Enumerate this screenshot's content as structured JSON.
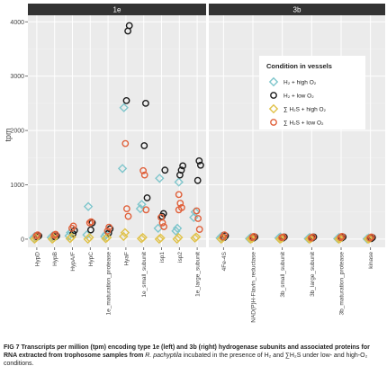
{
  "chart_data": {
    "type": "scatter",
    "ylabel": "tpm",
    "ylim": [
      -150,
      4120
    ],
    "yticks": [
      0,
      1000,
      2000,
      3000,
      4000
    ],
    "grid": true,
    "legend_placement": "right, inside 3b panel",
    "legend_title": "Condition in vessels",
    "series": [
      {
        "key": "h2_high",
        "name": "H₂ + high O₂",
        "marker": "diamond",
        "color": "#7fc6cc"
      },
      {
        "key": "h2_low",
        "name": "H₂ + low O₂",
        "marker": "circle",
        "color": "#1a1a1a"
      },
      {
        "key": "h2s_high",
        "name": "∑ H₂S + high O₂",
        "marker": "diamond",
        "color": "#e0c24a"
      },
      {
        "key": "h2s_low",
        "name": "∑ H₂S + low O₂",
        "marker": "circle",
        "color": "#e0603a"
      }
    ],
    "panels": [
      {
        "name": "1e",
        "categories": [
          "HypD",
          "HypB",
          "HypA/F",
          "HypC",
          "1e_maturation_protease",
          "HyaF",
          "1e_small_subunit",
          "isp1",
          "isp2",
          "1e_large_subunit"
        ],
        "values": {
          "h2_high": [
            [
              20,
              50
            ],
            [
              30,
              60
            ],
            [
              60,
              120
            ],
            [
              80,
              600
            ],
            [
              50,
              90
            ],
            [
              1300,
              2420
            ],
            [
              560,
              640
            ],
            [
              200,
              1120
            ],
            [
              150,
              200,
              1050
            ],
            [
              400,
              500
            ]
          ],
          "h2_low": [
            [
              40,
              60
            ],
            [
              40,
              60
            ],
            [
              100,
              160
            ],
            [
              170,
              300
            ],
            [
              110,
              190
            ],
            [
              2550,
              3830,
              3930
            ],
            [
              1720,
              2500,
              760
            ],
            [
              420,
              470,
              1270
            ],
            [
              1180,
              1270,
              1350
            ],
            [
              1080,
              1440,
              1360
            ]
          ],
          "h2s_high": [
            [
              0,
              20
            ],
            [
              0,
              20
            ],
            [
              10,
              40
            ],
            [
              0,
              30
            ],
            [
              10,
              30
            ],
            [
              50,
              120
            ],
            [
              10,
              30
            ],
            [
              0,
              20
            ],
            [
              0,
              30
            ],
            [
              20,
              40
            ]
          ],
          "h2s_low": [
            [
              60,
              80
            ],
            [
              70,
              90
            ],
            [
              200,
              240
            ],
            [
              300,
              320
            ],
            [
              150,
              220
            ],
            [
              1760,
              560,
              420
            ],
            [
              1260,
              1180,
              540
            ],
            [
              400,
              300,
              230
            ],
            [
              820,
              660,
              580,
              540
            ],
            [
              520,
              380,
              180
            ]
          ]
        }
      },
      {
        "name": "3b",
        "categories": [
          "4Fe-4S",
          "NAD(P)H-Flavin_reductase",
          "3b_small_subunit",
          "3b_large_subunit",
          "3b_maturation_protease",
          "kinase"
        ],
        "values": {
          "h2_high": [
            [
              20,
              50
            ],
            [
              10,
              30
            ],
            [
              20,
              40
            ],
            [
              10,
              30
            ],
            [
              10,
              30
            ],
            [
              5,
              20
            ]
          ],
          "h2_low": [
            [
              30,
              60
            ],
            [
              20,
              40
            ],
            [
              20,
              40
            ],
            [
              20,
              40
            ],
            [
              20,
              40
            ],
            [
              10,
              30
            ]
          ],
          "h2s_high": [
            [
              0,
              20
            ],
            [
              0,
              10
            ],
            [
              0,
              10
            ],
            [
              0,
              10
            ],
            [
              0,
              10
            ],
            [
              0,
              10
            ]
          ],
          "h2s_low": [
            [
              40,
              80
            ],
            [
              30,
              50
            ],
            [
              30,
              40
            ],
            [
              20,
              40
            ],
            [
              30,
              50
            ],
            [
              20,
              40
            ]
          ]
        }
      }
    ]
  },
  "caption": {
    "lead": "FIG 7",
    "title": "Transcripts per million (tpm) encoding type 1e (left) and 3b (right) hydrogenase subunits and associated proteins for RNA extracted from trophosome samples from ",
    "species": "R. pachyptila",
    "rest": " incubated in the presence of H₂ and ∑H₂S under low- and high-O₂ conditions."
  },
  "colors": {
    "strip_fill": "#333333",
    "strip_text": "#ffffff",
    "panel_bg": "#ebebeb",
    "grid_major": "#ffffff",
    "axis_text": "#444444"
  }
}
